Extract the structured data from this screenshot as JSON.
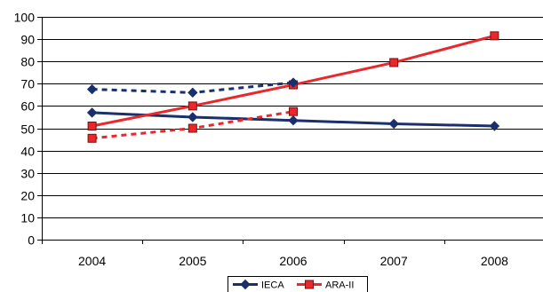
{
  "chart_data": {
    "type": "line",
    "title": "",
    "xlabel": "",
    "ylabel": "",
    "categories": [
      "2004",
      "2005",
      "2006",
      "2007",
      "2008"
    ],
    "ylim": [
      0,
      100
    ],
    "yticks": [
      0,
      10,
      20,
      30,
      40,
      50,
      60,
      70,
      80,
      90,
      100
    ],
    "grid": true,
    "legend_position": "bottom",
    "series": [
      {
        "name": "IECA",
        "style": "solid",
        "marker": "diamond",
        "color": "#1a2f6e",
        "values": [
          57,
          55,
          53.5,
          52,
          51
        ]
      },
      {
        "name": "ARA-II",
        "style": "solid",
        "marker": "square",
        "color": "#e8282a",
        "values": [
          51,
          60,
          69.5,
          79.5,
          91.5
        ]
      },
      {
        "name": "",
        "style": "dashed",
        "marker": "diamond",
        "color": "#1a2f6e",
        "values": [
          67.5,
          66,
          70.5,
          null,
          null
        ]
      },
      {
        "name": "",
        "style": "dashed",
        "marker": "square",
        "color": "#e8282a",
        "values": [
          45.5,
          50,
          57.5,
          null,
          null
        ]
      }
    ],
    "legend": [
      {
        "label": "IECA",
        "color": "#1a2f6e",
        "marker": "diamond"
      },
      {
        "label": "ARA-II",
        "color": "#e8282a",
        "marker": "square"
      }
    ]
  }
}
